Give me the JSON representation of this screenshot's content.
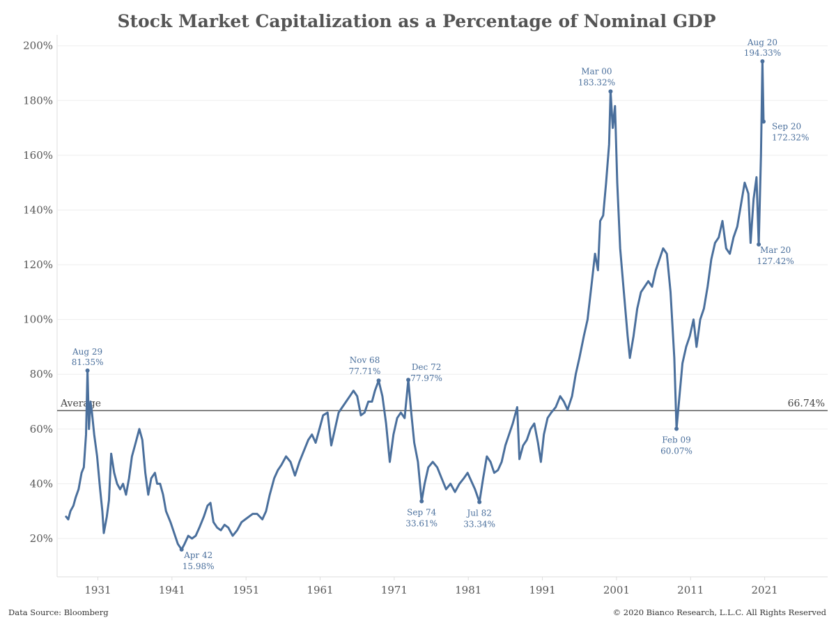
{
  "chart_data": {
    "type": "line",
    "title": "Stock Market Capitalization as a Percentage of Nominal GDP",
    "xlabel": "",
    "ylabel": "",
    "ylim": [
      6,
      204
    ],
    "xlim": [
      1925.5,
      2029.5
    ],
    "x_ticks": [
      1931,
      1941,
      1951,
      1961,
      1971,
      1981,
      1991,
      2001,
      2011,
      2021
    ],
    "x_tick_labels": [
      "1931",
      "1941",
      "1951",
      "1961",
      "1971",
      "1981",
      "1991",
      "2001",
      "2011",
      "2021"
    ],
    "y_ticks": [
      20,
      40,
      60,
      80,
      100,
      120,
      140,
      160,
      180,
      200
    ],
    "y_tick_labels": [
      "20%",
      "40%",
      "60%",
      "80%",
      "100%",
      "120%",
      "140%",
      "160%",
      "180%",
      "200%"
    ],
    "grid": true,
    "average": {
      "label": "Average",
      "value": 66.74,
      "value_label": "66.74%"
    },
    "series": [
      {
        "color": "#4a6f9c",
        "points": [
          [
            1926.7,
            28
          ],
          [
            1927.0,
            27
          ],
          [
            1927.3,
            30
          ],
          [
            1927.7,
            32
          ],
          [
            1928.0,
            35
          ],
          [
            1928.4,
            38
          ],
          [
            1928.8,
            44
          ],
          [
            1929.1,
            46
          ],
          [
            1929.4,
            58
          ],
          [
            1929.6,
            81.35
          ],
          [
            1929.8,
            60
          ],
          [
            1930.0,
            70
          ],
          [
            1930.2,
            66
          ],
          [
            1930.5,
            58
          ],
          [
            1930.9,
            50
          ],
          [
            1931.3,
            38
          ],
          [
            1931.6,
            30
          ],
          [
            1931.8,
            22
          ],
          [
            1932.2,
            28
          ],
          [
            1932.5,
            34
          ],
          [
            1932.8,
            51
          ],
          [
            1933.2,
            44
          ],
          [
            1933.6,
            40
          ],
          [
            1934.0,
            38
          ],
          [
            1934.4,
            40
          ],
          [
            1934.8,
            36
          ],
          [
            1935.2,
            42
          ],
          [
            1935.6,
            50
          ],
          [
            1936.0,
            54
          ],
          [
            1936.6,
            60
          ],
          [
            1937.0,
            56
          ],
          [
            1937.4,
            44
          ],
          [
            1937.8,
            36
          ],
          [
            1938.2,
            42
          ],
          [
            1938.7,
            44
          ],
          [
            1939.0,
            40
          ],
          [
            1939.4,
            40
          ],
          [
            1939.8,
            36
          ],
          [
            1940.2,
            30
          ],
          [
            1940.8,
            26
          ],
          [
            1941.3,
            22
          ],
          [
            1941.8,
            18
          ],
          [
            1942.3,
            15.98
          ],
          [
            1942.7,
            18
          ],
          [
            1943.2,
            21
          ],
          [
            1943.7,
            20
          ],
          [
            1944.2,
            21
          ],
          [
            1944.7,
            24
          ],
          [
            1945.3,
            28
          ],
          [
            1945.8,
            32
          ],
          [
            1946.2,
            33
          ],
          [
            1946.6,
            26
          ],
          [
            1947.1,
            24
          ],
          [
            1947.6,
            23
          ],
          [
            1948.1,
            25
          ],
          [
            1948.6,
            24
          ],
          [
            1949.2,
            21
          ],
          [
            1949.8,
            23
          ],
          [
            1950.4,
            26
          ],
          [
            1950.9,
            27
          ],
          [
            1951.4,
            28
          ],
          [
            1951.9,
            29
          ],
          [
            1952.5,
            29
          ],
          [
            1953.2,
            27
          ],
          [
            1953.7,
            30
          ],
          [
            1954.2,
            36
          ],
          [
            1954.8,
            42
          ],
          [
            1955.3,
            45
          ],
          [
            1955.8,
            47
          ],
          [
            1956.4,
            50
          ],
          [
            1957.0,
            48
          ],
          [
            1957.6,
            43
          ],
          [
            1958.2,
            48
          ],
          [
            1958.8,
            52
          ],
          [
            1959.4,
            56
          ],
          [
            1959.9,
            58
          ],
          [
            1960.4,
            55
          ],
          [
            1960.9,
            60
          ],
          [
            1961.4,
            65
          ],
          [
            1962.0,
            66
          ],
          [
            1962.5,
            54
          ],
          [
            1963.0,
            60
          ],
          [
            1963.5,
            66
          ],
          [
            1964.0,
            68
          ],
          [
            1964.5,
            70
          ],
          [
            1965.0,
            72
          ],
          [
            1965.5,
            74
          ],
          [
            1966.0,
            72
          ],
          [
            1966.5,
            65
          ],
          [
            1967.0,
            66
          ],
          [
            1967.5,
            70
          ],
          [
            1968.0,
            70
          ],
          [
            1968.4,
            74
          ],
          [
            1968.9,
            77.71
          ],
          [
            1969.4,
            72
          ],
          [
            1969.9,
            62
          ],
          [
            1970.4,
            48
          ],
          [
            1970.9,
            58
          ],
          [
            1971.4,
            64
          ],
          [
            1971.9,
            66
          ],
          [
            1972.4,
            64
          ],
          [
            1972.9,
            77.97
          ],
          [
            1973.3,
            66
          ],
          [
            1973.7,
            55
          ],
          [
            1974.2,
            48
          ],
          [
            1974.7,
            33.61
          ],
          [
            1975.1,
            40
          ],
          [
            1975.6,
            46
          ],
          [
            1976.2,
            48
          ],
          [
            1976.8,
            46
          ],
          [
            1977.4,
            42
          ],
          [
            1978.0,
            38
          ],
          [
            1978.6,
            40
          ],
          [
            1979.2,
            37
          ],
          [
            1979.8,
            40
          ],
          [
            1980.4,
            42
          ],
          [
            1980.9,
            44
          ],
          [
            1981.4,
            41
          ],
          [
            1981.9,
            38
          ],
          [
            1982.5,
            33.34
          ],
          [
            1983.0,
            42
          ],
          [
            1983.5,
            50
          ],
          [
            1984.0,
            48
          ],
          [
            1984.5,
            44
          ],
          [
            1985.0,
            45
          ],
          [
            1985.5,
            48
          ],
          [
            1986.0,
            54
          ],
          [
            1986.5,
            58
          ],
          [
            1987.0,
            62
          ],
          [
            1987.6,
            68
          ],
          [
            1987.9,
            49
          ],
          [
            1988.4,
            54
          ],
          [
            1988.9,
            56
          ],
          [
            1989.4,
            60
          ],
          [
            1989.9,
            62
          ],
          [
            1990.4,
            55
          ],
          [
            1990.8,
            48
          ],
          [
            1991.2,
            58
          ],
          [
            1991.7,
            64
          ],
          [
            1992.2,
            66
          ],
          [
            1992.8,
            68
          ],
          [
            1993.4,
            72
          ],
          [
            1993.9,
            70
          ],
          [
            1994.4,
            67
          ],
          [
            1995.0,
            72
          ],
          [
            1995.5,
            80
          ],
          [
            1996.0,
            86
          ],
          [
            1996.6,
            94
          ],
          [
            1997.1,
            100
          ],
          [
            1997.6,
            112
          ],
          [
            1998.1,
            124
          ],
          [
            1998.5,
            118
          ],
          [
            1998.8,
            136
          ],
          [
            1999.2,
            138
          ],
          [
            1999.6,
            150
          ],
          [
            2000.0,
            164
          ],
          [
            2000.2,
            183.32
          ],
          [
            2000.5,
            170
          ],
          [
            2000.8,
            178
          ],
          [
            2001.1,
            150
          ],
          [
            2001.5,
            126
          ],
          [
            2002.0,
            110
          ],
          [
            2002.5,
            94
          ],
          [
            2002.8,
            86
          ],
          [
            2003.3,
            94
          ],
          [
            2003.8,
            104
          ],
          [
            2004.3,
            110
          ],
          [
            2004.8,
            112
          ],
          [
            2005.3,
            114
          ],
          [
            2005.8,
            112
          ],
          [
            2006.3,
            118
          ],
          [
            2006.8,
            122
          ],
          [
            2007.3,
            126
          ],
          [
            2007.8,
            124
          ],
          [
            2008.3,
            110
          ],
          [
            2008.8,
            86
          ],
          [
            2009.1,
            60.07
          ],
          [
            2009.5,
            72
          ],
          [
            2009.9,
            84
          ],
          [
            2010.4,
            90
          ],
          [
            2010.9,
            94
          ],
          [
            2011.4,
            100
          ],
          [
            2011.8,
            90
          ],
          [
            2012.3,
            100
          ],
          [
            2012.8,
            104
          ],
          [
            2013.3,
            112
          ],
          [
            2013.8,
            122
          ],
          [
            2014.3,
            128
          ],
          [
            2014.8,
            130
          ],
          [
            2015.3,
            136
          ],
          [
            2015.8,
            126
          ],
          [
            2016.3,
            124
          ],
          [
            2016.8,
            130
          ],
          [
            2017.3,
            134
          ],
          [
            2017.8,
            142
          ],
          [
            2018.3,
            150
          ],
          [
            2018.8,
            146
          ],
          [
            2019.1,
            128
          ],
          [
            2019.5,
            144
          ],
          [
            2019.9,
            152
          ],
          [
            2020.2,
            127.42
          ],
          [
            2020.5,
            160
          ],
          [
            2020.7,
            194.33
          ],
          [
            2020.85,
            172.32
          ]
        ]
      }
    ],
    "annotations": [
      {
        "label": "Aug 29",
        "value_label": "81.35%",
        "x": 1929.6,
        "y": 81.35,
        "pos": "above"
      },
      {
        "label": "Apr 42",
        "value_label": "15.98%",
        "x": 1942.3,
        "y": 15.98,
        "pos": "below-right"
      },
      {
        "label": "Nov 68",
        "value_label": "77.71%",
        "x": 1968.9,
        "y": 77.71,
        "pos": "above-left"
      },
      {
        "label": "Dec 72",
        "value_label": "77.97%",
        "x": 1972.9,
        "y": 77.97,
        "pos": "above-right"
      },
      {
        "label": "Sep 74",
        "value_label": "33.61%",
        "x": 1974.7,
        "y": 33.61,
        "pos": "below"
      },
      {
        "label": "Jul 82",
        "value_label": "33.34%",
        "x": 1982.5,
        "y": 33.34,
        "pos": "below"
      },
      {
        "label": "Mar 00",
        "value_label": "183.32%",
        "x": 2000.2,
        "y": 183.32,
        "pos": "above-left"
      },
      {
        "label": "Feb 09",
        "value_label": "60.07%",
        "x": 2009.1,
        "y": 60.07,
        "pos": "below"
      },
      {
        "label": "Mar 20",
        "value_label": "127.42%",
        "x": 2020.2,
        "y": 127.42,
        "pos": "below-right"
      },
      {
        "label": "Aug 20",
        "value_label": "194.33%",
        "x": 2020.7,
        "y": 194.33,
        "pos": "above"
      },
      {
        "label": "Sep 20",
        "value_label": "172.32%",
        "x": 2020.85,
        "y": 172.32,
        "pos": "right"
      }
    ]
  },
  "footer": {
    "source": "Data Source: Bloomberg",
    "copyright": "© 2020 Bianco Research, L.L.C. All Rights Reserved"
  }
}
